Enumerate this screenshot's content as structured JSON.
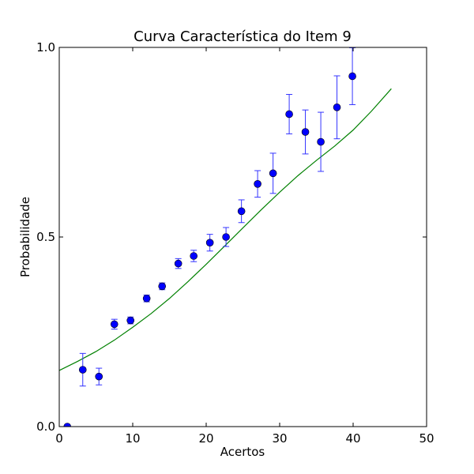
{
  "chart_data": {
    "type": "scatter",
    "title": "Curva Característica do Item 9",
    "xlabel": "Acertos",
    "ylabel": "Probabilidade",
    "xlim": [
      0,
      50
    ],
    "ylim": [
      0.0,
      1.0
    ],
    "x_ticks": [
      0,
      10,
      20,
      30,
      40,
      50
    ],
    "x_tick_labels": [
      "0",
      "10",
      "20",
      "30",
      "40",
      "50"
    ],
    "y_ticks": [
      0.0,
      0.5,
      1.0
    ],
    "y_tick_labels": [
      "0.0",
      "0.5",
      "1.0"
    ],
    "grid": false,
    "colors": {
      "points": "#0000ff",
      "errorbars": "#3434ff",
      "curve": "#008000"
    },
    "points": [
      {
        "x": 1.1,
        "y": 0.0,
        "err": 0.0
      },
      {
        "x": 3.2,
        "y": 0.15,
        "err": 0.043
      },
      {
        "x": 5.4,
        "y": 0.132,
        "err": 0.022
      },
      {
        "x": 7.5,
        "y": 0.27,
        "err": 0.013
      },
      {
        "x": 9.7,
        "y": 0.28,
        "err": 0.009
      },
      {
        "x": 11.9,
        "y": 0.338,
        "err": 0.009
      },
      {
        "x": 14.0,
        "y": 0.37,
        "err": 0.009
      },
      {
        "x": 16.2,
        "y": 0.43,
        "err": 0.013
      },
      {
        "x": 18.3,
        "y": 0.45,
        "err": 0.015
      },
      {
        "x": 20.5,
        "y": 0.485,
        "err": 0.022
      },
      {
        "x": 22.7,
        "y": 0.5,
        "err": 0.025
      },
      {
        "x": 24.8,
        "y": 0.568,
        "err": 0.03
      },
      {
        "x": 27.0,
        "y": 0.64,
        "err": 0.035
      },
      {
        "x": 29.1,
        "y": 0.668,
        "err": 0.053
      },
      {
        "x": 31.3,
        "y": 0.824,
        "err": 0.052
      },
      {
        "x": 33.5,
        "y": 0.777,
        "err": 0.058
      },
      {
        "x": 35.6,
        "y": 0.751,
        "err": 0.078
      },
      {
        "x": 37.8,
        "y": 0.842,
        "err": 0.083
      },
      {
        "x": 39.9,
        "y": 0.924,
        "err": 0.075
      }
    ],
    "curve": {
      "x": [
        0,
        2.5,
        5,
        7.5,
        10,
        12.5,
        15,
        17.5,
        20,
        22.5,
        25,
        27.5,
        30,
        32.5,
        35,
        37.5,
        40,
        42.5,
        45.2
      ],
      "y": [
        0.148,
        0.172,
        0.198,
        0.228,
        0.262,
        0.298,
        0.338,
        0.382,
        0.428,
        0.476,
        0.524,
        0.572,
        0.618,
        0.662,
        0.702,
        0.74,
        0.782,
        0.832,
        0.891
      ]
    }
  }
}
